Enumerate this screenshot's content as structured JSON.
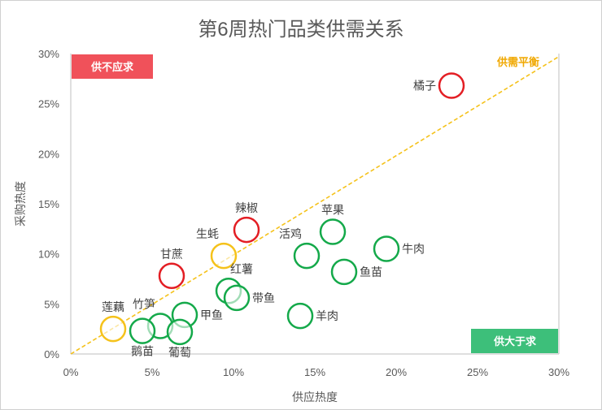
{
  "chart_data": {
    "type": "scatter",
    "title": "第6周热门品类供需关系",
    "xlabel": "供应热度",
    "ylabel": "采购热度",
    "xlim": [
      0,
      30
    ],
    "ylim": [
      0,
      30
    ],
    "x_ticks": [
      "0%",
      "5%",
      "10%",
      "15%",
      "20%",
      "25%",
      "30%"
    ],
    "y_ticks": [
      "0%",
      "5%",
      "10%",
      "15%",
      "20%",
      "25%",
      "30%"
    ],
    "grid": false,
    "colors": {
      "demand_exceeds": "#e31e24",
      "balanced": "#f5c21b",
      "supply_exceeds": "#14a94a",
      "box_red": "#f0515a",
      "box_green": "#3dbf7a",
      "balance_line": "#f5c21b",
      "balance_text": "#f0a800"
    },
    "annotations": {
      "top_left_box": "供不应求",
      "bottom_right_box": "供大于求",
      "balance_line_label": "供需平衡"
    },
    "points": [
      {
        "name": "橘子",
        "x": 23.4,
        "y": 26.8,
        "group": "demand_exceeds",
        "label_pos": "left"
      },
      {
        "name": "辣椒",
        "x": 10.8,
        "y": 12.4,
        "group": "demand_exceeds",
        "label_pos": "top"
      },
      {
        "name": "甘蔗",
        "x": 6.2,
        "y": 7.8,
        "group": "demand_exceeds",
        "label_pos": "top"
      },
      {
        "name": "生蚝",
        "x": 9.4,
        "y": 9.8,
        "group": "balanced",
        "label_pos": "top-left"
      },
      {
        "name": "莲藕",
        "x": 2.6,
        "y": 2.5,
        "group": "balanced",
        "label_pos": "top"
      },
      {
        "name": "苹果",
        "x": 16.1,
        "y": 12.2,
        "group": "supply_exceeds",
        "label_pos": "top"
      },
      {
        "name": "活鸡",
        "x": 14.5,
        "y": 9.8,
        "group": "supply_exceeds",
        "label_pos": "top-left"
      },
      {
        "name": "牛肉",
        "x": 19.4,
        "y": 10.5,
        "group": "supply_exceeds",
        "label_pos": "right"
      },
      {
        "name": "鱼苗",
        "x": 16.8,
        "y": 8.2,
        "group": "supply_exceeds",
        "label_pos": "right"
      },
      {
        "name": "红薯",
        "x": 9.7,
        "y": 6.3,
        "group": "supply_exceeds",
        "label_pos": "top-right"
      },
      {
        "name": "带鱼",
        "x": 10.2,
        "y": 5.6,
        "group": "supply_exceeds",
        "label_pos": "right"
      },
      {
        "name": "甲鱼",
        "x": 7.0,
        "y": 3.9,
        "group": "supply_exceeds",
        "label_pos": "right"
      },
      {
        "name": "羊肉",
        "x": 14.1,
        "y": 3.8,
        "group": "supply_exceeds",
        "label_pos": "right"
      },
      {
        "name": "竹笋",
        "x": 5.5,
        "y": 2.8,
        "group": "supply_exceeds",
        "label_pos": "top-left"
      },
      {
        "name": "鹅苗",
        "x": 4.4,
        "y": 2.3,
        "group": "supply_exceeds",
        "label_pos": "bottom"
      },
      {
        "name": "葡萄",
        "x": 6.7,
        "y": 2.2,
        "group": "supply_exceeds",
        "label_pos": "bottom"
      }
    ]
  }
}
